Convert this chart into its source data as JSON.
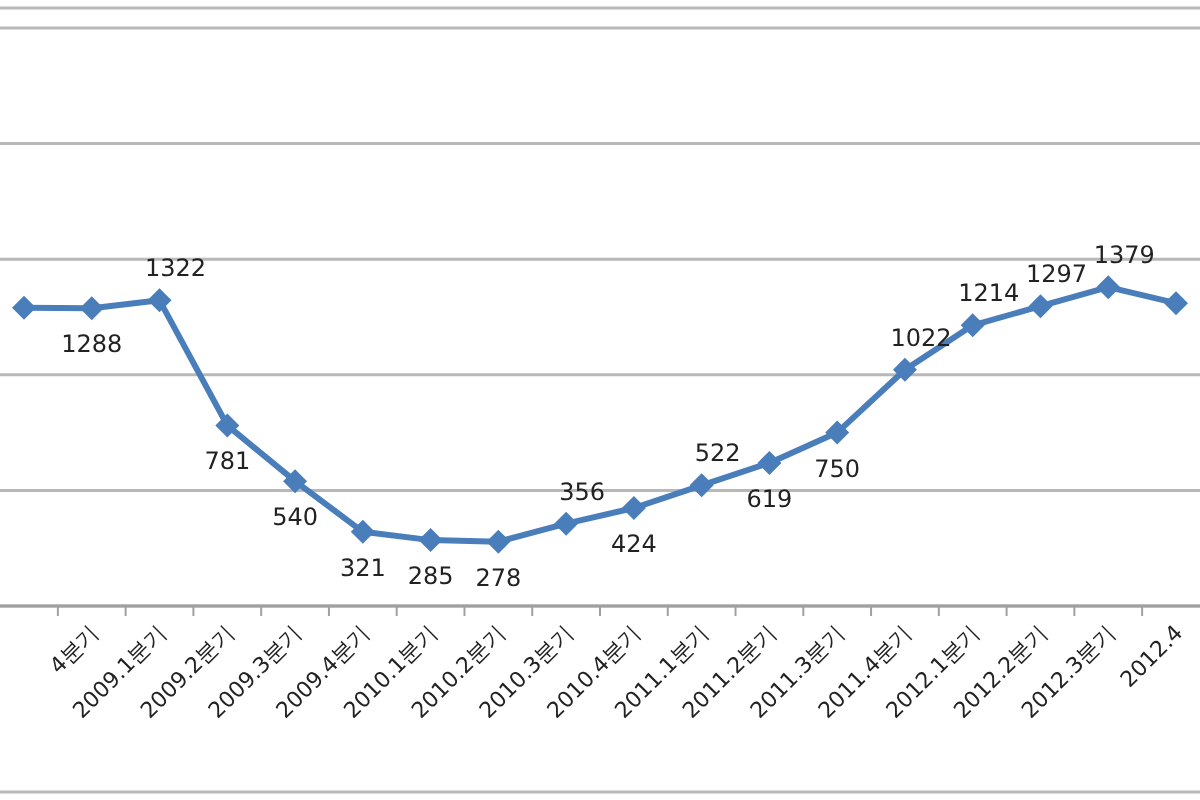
{
  "chart_data": {
    "type": "line",
    "categories": [
      null,
      "4분기",
      "2009.1분기",
      "2009.2분기",
      "2009.3분기",
      "2009.4분기",
      "2010.1분기",
      "2010.2분기",
      "2010.3분기",
      "2010.4분기",
      "2011.1분기",
      "2011.2분기",
      "2011.3분기",
      "2011.4분기",
      "2012.1분기",
      "2012.2분기",
      "2012.3분기",
      "2012.4"
    ],
    "values": [
      1290,
      1288,
      1322,
      781,
      540,
      321,
      285,
      278,
      356,
      424,
      522,
      619,
      750,
      1022,
      1214,
      1297,
      1379,
      1310
    ],
    "value_labels": [
      null,
      "1288",
      "1322",
      "781",
      "540",
      "321",
      "285",
      "278",
      "356",
      "424",
      "522",
      "619",
      "750",
      "1022",
      "1214",
      "1297",
      "1379",
      null
    ],
    "color": "#4a7ebb",
    "marker": "diamond",
    "grid": "y",
    "tick_labels": "x",
    "ylim": [
      0,
      2500
    ],
    "yticks": [
      {
        "value": 0,
        "label": null
      },
      {
        "value": 500,
        "label": null
      },
      {
        "value": 1000,
        "label": null
      },
      {
        "value": 1500,
        "label": null
      },
      {
        "value": 2000,
        "label": null
      },
      {
        "value": 2500,
        "label": null
      }
    ]
  }
}
